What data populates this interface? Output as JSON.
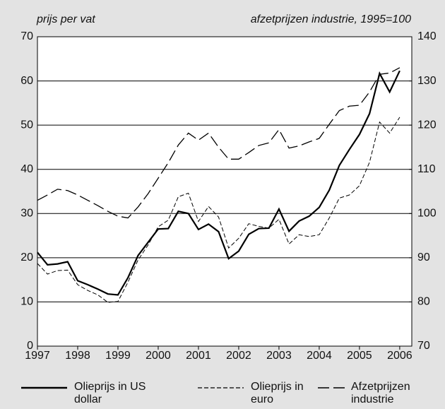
{
  "chart_data": {
    "type": "line",
    "y_label": "prijs per vat",
    "y2_label": "afzetprijzen industrie, 1995=100",
    "x": [
      1997,
      1997.25,
      1997.5,
      1997.75,
      1998,
      1998.25,
      1998.5,
      1998.75,
      1999,
      1999.25,
      1999.5,
      1999.75,
      2000,
      2000.25,
      2000.5,
      2000.75,
      2001,
      2001.25,
      2001.5,
      2001.75,
      2002,
      2002.25,
      2002.5,
      2002.75,
      2003,
      2003.25,
      2003.5,
      2003.75,
      2004,
      2004.25,
      2004.5,
      2004.75,
      2005,
      2005.25,
      2005.5,
      2005.75,
      2006
    ],
    "xlim": [
      1997,
      2006.3
    ],
    "xticks": [
      1997,
      1998,
      1999,
      2000,
      2001,
      2002,
      2003,
      2004,
      2005,
      2006
    ],
    "ylim": [
      0,
      70
    ],
    "yticks": [
      0,
      10,
      20,
      30,
      40,
      50,
      60,
      70
    ],
    "y2lim": [
      70,
      140
    ],
    "y2ticks": [
      70,
      80,
      90,
      100,
      110,
      120,
      130,
      140
    ],
    "grid": true,
    "legend": "bottom",
    "series": [
      {
        "name": "Olieprijs in US dollar",
        "color": "#000000",
        "style": "solid",
        "values": [
          21.2,
          18.4,
          18.6,
          19.1,
          14.8,
          13.9,
          12.9,
          11.8,
          11.6,
          15.5,
          20.5,
          23.5,
          26.5,
          26.6,
          30.5,
          30.0,
          26.4,
          27.6,
          25.9,
          19.8,
          21.5,
          25.3,
          26.6,
          26.7,
          31.0,
          26.0,
          28.3,
          29.4,
          31.4,
          35.3,
          40.9,
          44.5,
          47.9,
          52.6,
          61.7,
          57.5,
          62.3
        ]
      },
      {
        "name": "Olieprijs in euro",
        "color": "#000000",
        "style": "dashed",
        "values": [
          18.7,
          16.3,
          17.1,
          17.2,
          13.9,
          12.6,
          11.6,
          9.9,
          10.1,
          14.5,
          19.5,
          22.9,
          27.0,
          28.5,
          33.8,
          34.6,
          28.2,
          31.6,
          29.2,
          22.2,
          24.4,
          27.7,
          27.1,
          26.7,
          28.7,
          23.1,
          25.2,
          24.8,
          25.2,
          29.0,
          33.5,
          34.2,
          36.3,
          41.6,
          50.7,
          48.2,
          51.8
        ]
      },
      {
        "name": "Afzetprijzen industrie",
        "color": "#000000",
        "style": "longdash",
        "axis": "y2",
        "values": [
          103,
          104.2,
          105.5,
          105.2,
          104.2,
          103,
          101.8,
          100.5,
          99.4,
          99,
          101.5,
          104.5,
          108,
          111.5,
          115.5,
          118.2,
          116.6,
          118.2,
          115,
          112.3,
          112.3,
          113.8,
          115.4,
          116,
          119,
          114.8,
          115.3,
          116.2,
          117,
          120.2,
          123.3,
          124.3,
          124.5,
          127.5,
          131.5,
          131.8,
          133
        ]
      }
    ]
  }
}
